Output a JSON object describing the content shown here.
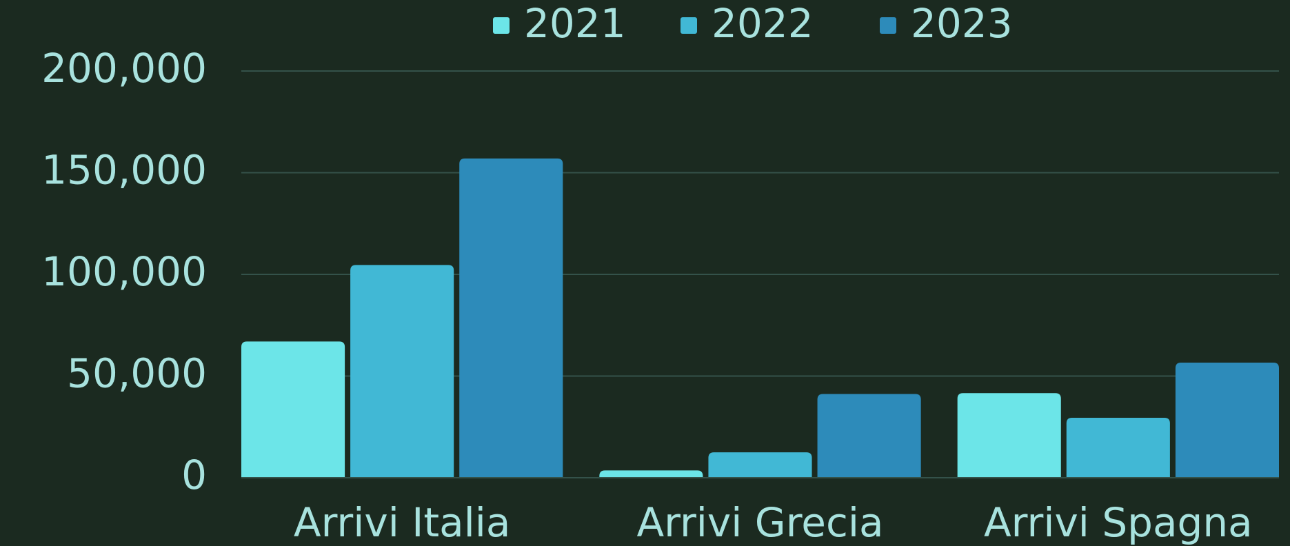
{
  "chart_data": {
    "type": "bar",
    "categories": [
      "Arrivi Italia",
      "Arrivi Grecia",
      "Arrivi Spagna"
    ],
    "series": [
      {
        "name": "2021",
        "color": "#6ce5e8",
        "values": [
          67000,
          3600,
          41600
        ]
      },
      {
        "name": "2022",
        "color": "#41b8d5",
        "values": [
          104600,
          12500,
          29500
        ]
      },
      {
        "name": "2023",
        "color": "#2d8bba",
        "values": [
          157000,
          41200,
          56600
        ]
      }
    ],
    "ylim": [
      0,
      200000
    ],
    "yticks": [
      0,
      {
        "value": 50000,
        "label": "50,000"
      },
      {
        "value": 100000,
        "label": "100,000"
      },
      {
        "value": 150000,
        "label": "150,000"
      },
      {
        "value": 200000,
        "label": "200,000"
      }
    ],
    "grid": true,
    "legend": "top"
  }
}
